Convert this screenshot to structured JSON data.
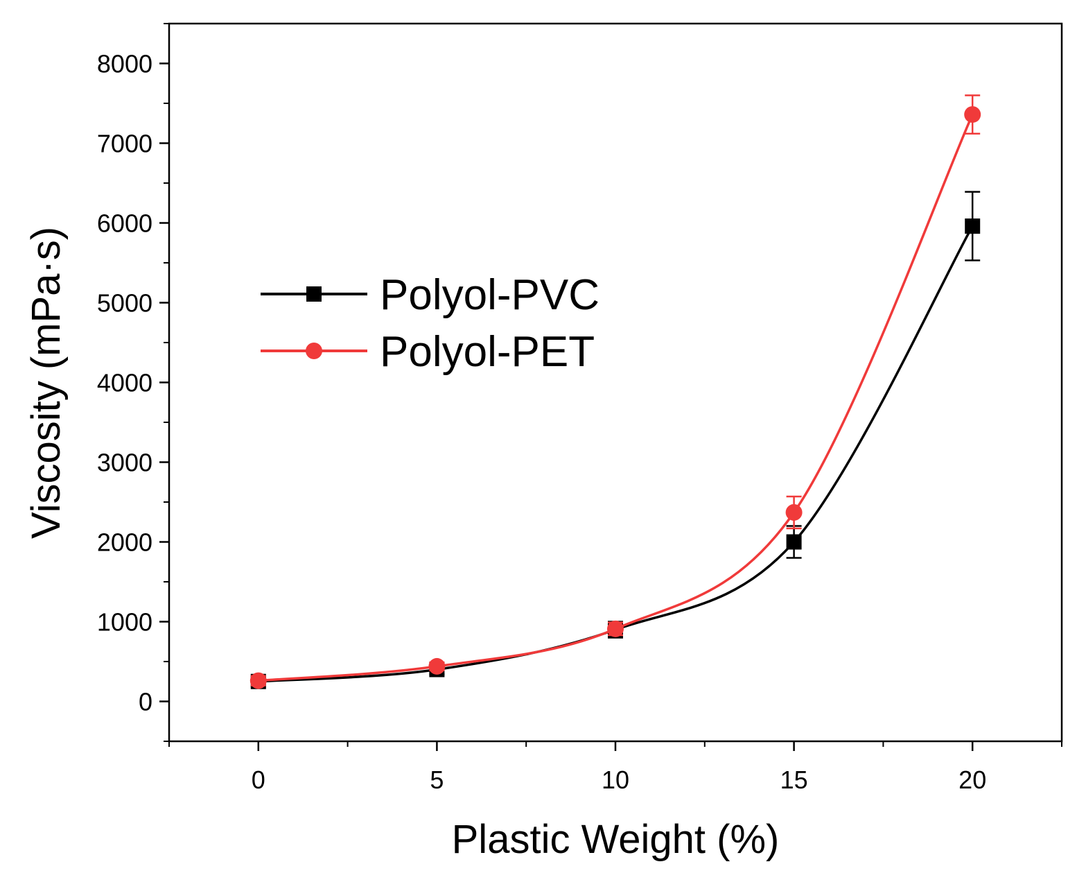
{
  "chart_data": {
    "type": "line",
    "title": "",
    "xlabel": "Plastic Weight (%)",
    "ylabel": "Viscosity (mPa·s)",
    "xlim": [
      -2.5,
      22.5
    ],
    "ylim": [
      -500,
      8500
    ],
    "xticks": [
      0,
      5,
      10,
      15,
      20
    ],
    "yticks": [
      0,
      1000,
      2000,
      3000,
      4000,
      5000,
      6000,
      7000,
      8000
    ],
    "grid": false,
    "legend_position": "center-left",
    "series": [
      {
        "name": "Polyol-PVC",
        "color": "#000000",
        "marker": "square",
        "x": [
          0,
          5,
          10,
          15,
          20
        ],
        "y": [
          250,
          400,
          900,
          2000,
          5960
        ],
        "error": [
          60,
          60,
          100,
          200,
          430
        ]
      },
      {
        "name": "Polyol-PET",
        "color": "#f03a3a",
        "marker": "circle",
        "x": [
          0,
          5,
          10,
          15,
          20
        ],
        "y": [
          260,
          440,
          910,
          2370,
          7360
        ],
        "error": [
          60,
          50,
          80,
          200,
          240
        ]
      }
    ]
  }
}
